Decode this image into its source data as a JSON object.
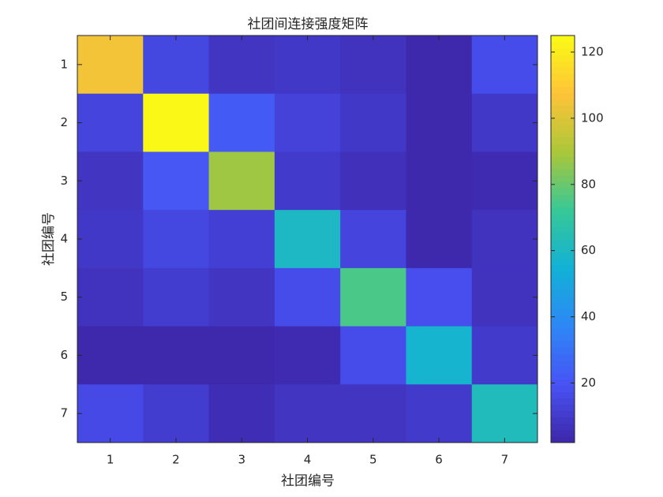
{
  "chart_data": {
    "type": "heatmap",
    "title": "社团间连接强度矩阵",
    "xlabel": "社团编号",
    "ylabel": "社团编号",
    "xlim": [
      0.5,
      7.5
    ],
    "ylim": [
      0.5,
      7.5
    ],
    "xticks": [
      1,
      2,
      3,
      4,
      5,
      6,
      7
    ],
    "yticks": [
      1,
      2,
      3,
      4,
      5,
      6,
      7
    ],
    "values": [
      [
        105,
        15,
        8,
        9,
        7,
        3,
        17
      ],
      [
        14,
        124,
        22,
        13,
        9,
        3,
        9
      ],
      [
        8,
        21,
        88,
        10,
        6,
        3,
        4
      ],
      [
        9,
        15,
        12,
        60,
        14,
        3,
        7
      ],
      [
        7,
        11,
        8,
        17,
        75,
        18,
        7
      ],
      [
        3,
        3,
        3,
        4,
        17,
        57,
        10
      ],
      [
        16,
        11,
        5,
        8,
        8,
        10,
        62
      ]
    ],
    "colormap": "parula",
    "clim": [
      2,
      125
    ],
    "cticks": [
      20,
      40,
      60,
      80,
      100,
      120
    ]
  }
}
